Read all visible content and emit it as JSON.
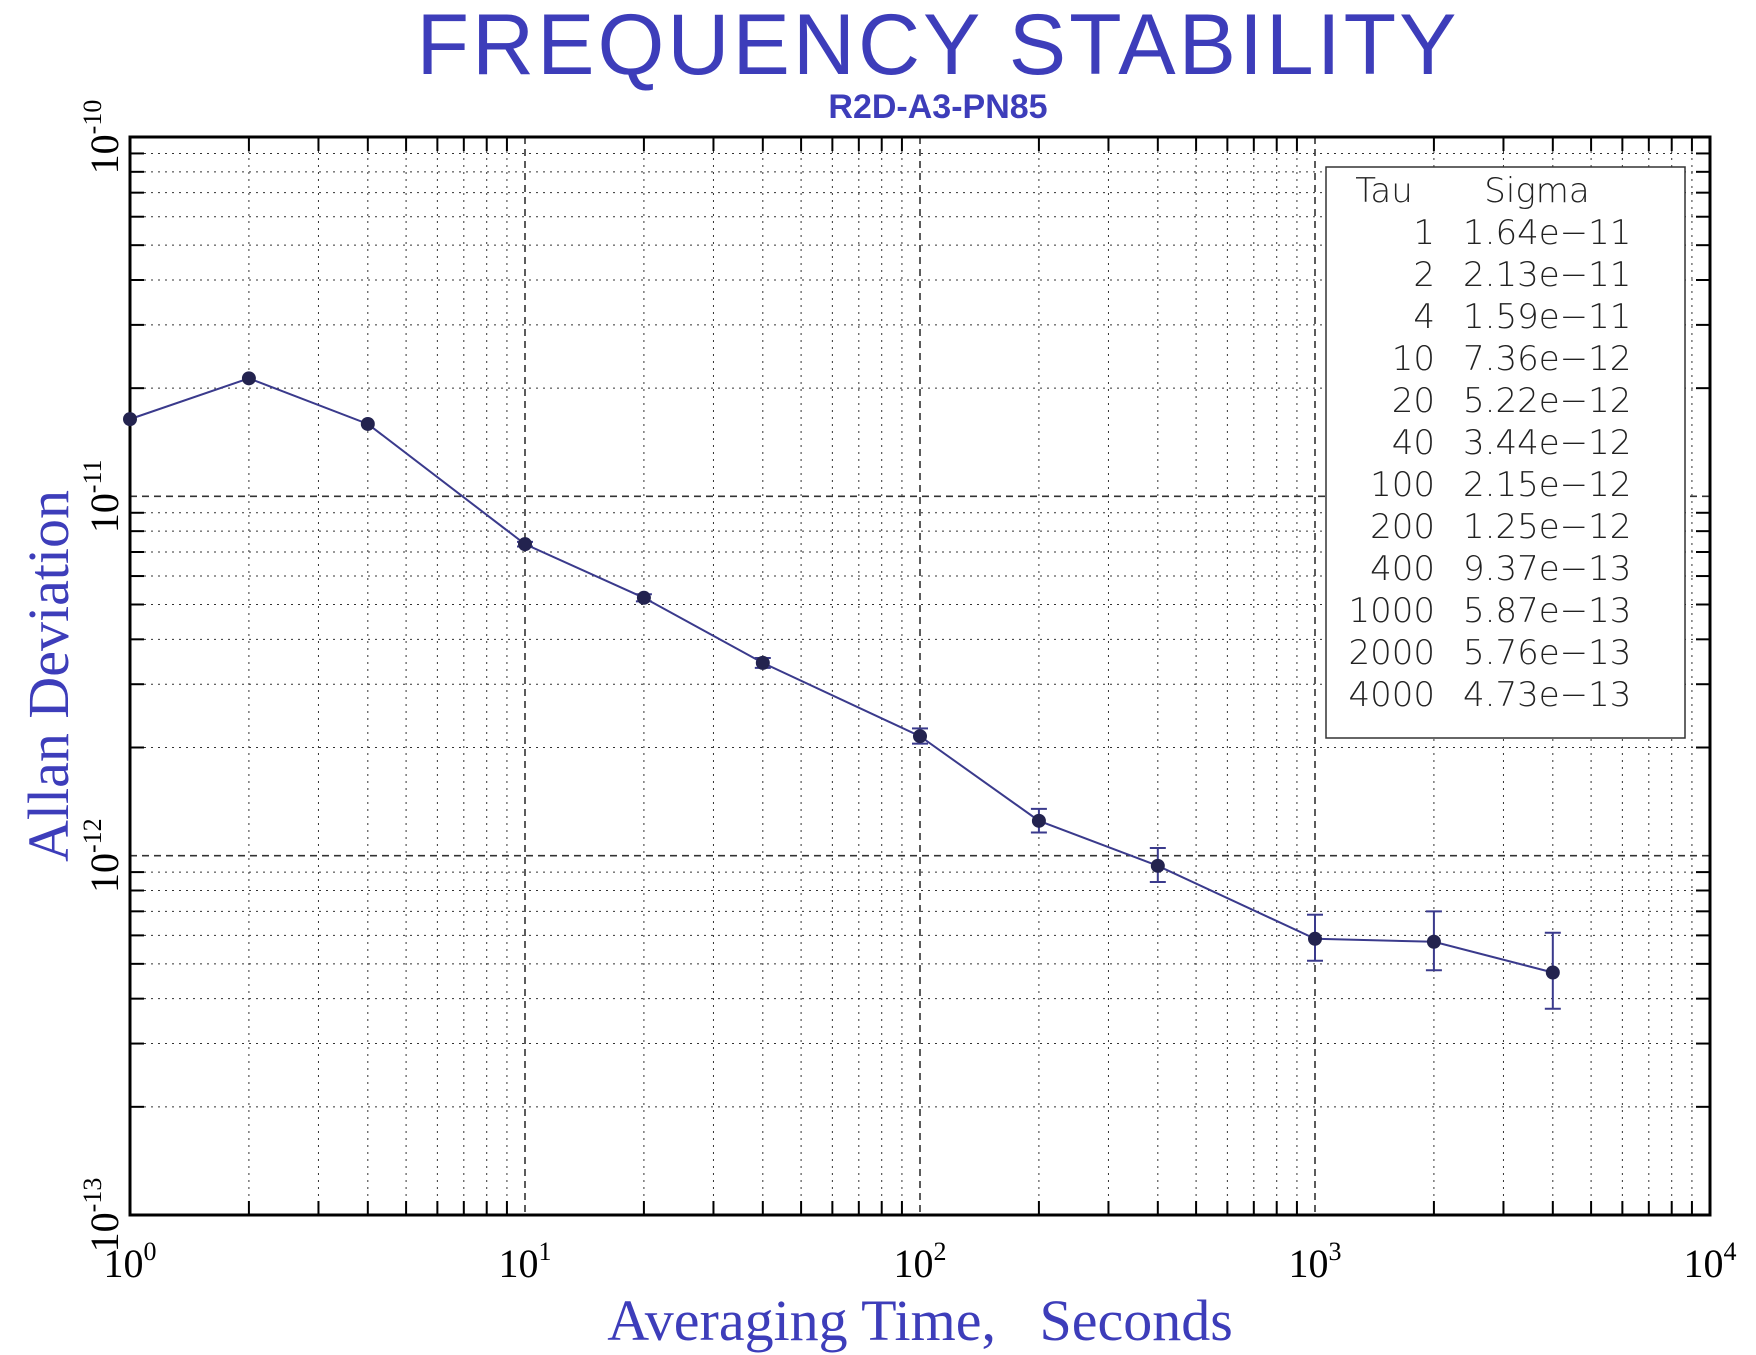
{
  "chart_data": {
    "type": "line",
    "title": "FREQUENCY STABILITY",
    "subtitle": "R2D-A3-PN85",
    "xlabel": "Averaging Time,   Seconds",
    "ylabel": "Allan Deviation",
    "xscale": "log",
    "yscale": "log",
    "xlim": [
      1,
      10000
    ],
    "ylim": [
      1e-13,
      1e-10
    ],
    "grid": true,
    "legend_placement": "top-right",
    "x_ticks": [
      {
        "base": "10",
        "exp": "0",
        "value": 1
      },
      {
        "base": "10",
        "exp": "1",
        "value": 10
      },
      {
        "base": "10",
        "exp": "2",
        "value": 100
      },
      {
        "base": "10",
        "exp": "3",
        "value": 1000
      },
      {
        "base": "10",
        "exp": "4",
        "value": 10000
      }
    ],
    "y_ticks": [
      {
        "base": "10",
        "exp": "-10",
        "value": 1e-10
      },
      {
        "base": "10",
        "exp": "-11",
        "value": 1e-11
      },
      {
        "base": "10",
        "exp": "-12",
        "value": 1e-12
      },
      {
        "base": "10",
        "exp": "-13",
        "value": 1e-13
      }
    ],
    "table_headers": [
      "Tau",
      "Sigma"
    ],
    "table_rows": [
      [
        "1",
        "1.64e−11"
      ],
      [
        "2",
        "2.13e−11"
      ],
      [
        "4",
        "1.59e−11"
      ],
      [
        "10",
        "7.36e−12"
      ],
      [
        "20",
        "5.22e−12"
      ],
      [
        "40",
        "3.44e−12"
      ],
      [
        "100",
        "2.15e−12"
      ],
      [
        "200",
        "1.25e−12"
      ],
      [
        "400",
        "9.37e−13"
      ],
      [
        "1000",
        "5.87e−13"
      ],
      [
        "2000",
        "5.76e−13"
      ],
      [
        "4000",
        "4.73e−13"
      ]
    ],
    "series": [
      {
        "x": [
          1,
          2,
          4,
          10,
          20,
          40,
          100,
          200,
          400,
          1000,
          2000,
          4000
        ],
        "y": [
          1.64e-11,
          2.13e-11,
          1.59e-11,
          7.36e-12,
          5.22e-12,
          3.44e-12,
          2.15e-12,
          1.25e-12,
          9.37e-13,
          5.87e-13,
          5.76e-13,
          4.73e-13
        ],
        "error_low": [
          1.64e-11,
          2.13e-11,
          1.59e-11,
          7.25e-12,
          5.1e-12,
          3.33e-12,
          2.05e-12,
          1.16e-12,
          8.45e-13,
          5.1e-13,
          4.8e-13,
          3.75e-13
        ],
        "error_high": [
          1.64e-11,
          2.13e-11,
          1.59e-11,
          7.47e-12,
          5.34e-12,
          3.55e-12,
          2.26e-12,
          1.35e-12,
          1.05e-12,
          6.85e-13,
          7e-13,
          6.1e-13
        ]
      }
    ],
    "colors": {
      "series": "#3a3a8c",
      "marker": "#23234f",
      "title": "#3d3dba",
      "grid": "#333333",
      "axes": "#000000"
    }
  }
}
